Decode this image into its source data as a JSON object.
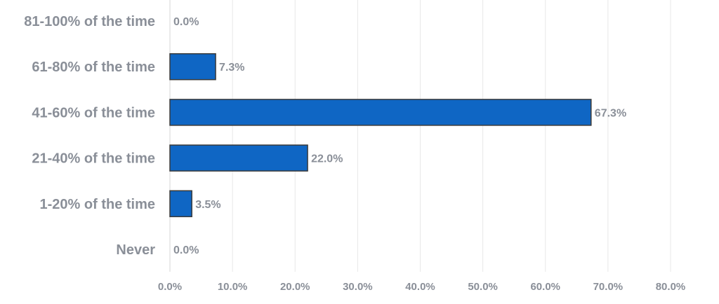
{
  "chart_data": {
    "type": "bar",
    "orientation": "horizontal",
    "categories": [
      "81-100% of the time",
      "61-80% of the time",
      "41-60% of the time",
      "21-40% of the time",
      "1-20% of the time",
      "Never"
    ],
    "values": [
      0.0,
      7.3,
      67.3,
      22.0,
      3.5,
      0.0
    ],
    "value_labels": [
      "0.0%",
      "7.3%",
      "67.3%",
      "22.0%",
      "3.5%",
      "0.0%"
    ],
    "xlim": [
      0,
      80
    ],
    "x_ticks": [
      0,
      10,
      20,
      30,
      40,
      50,
      60,
      70,
      80
    ],
    "x_tick_labels": [
      "0.0%",
      "10.0%",
      "20.0%",
      "30.0%",
      "40.0%",
      "50.0%",
      "60.0%",
      "70.0%",
      "80.0%"
    ],
    "title": "",
    "xlabel": "",
    "ylabel": "",
    "grid": "vertical",
    "legend": "none",
    "bar_color": "#0f66c4",
    "bar_outline_color": "#3a3a3a",
    "text_color": "#8a8f98"
  }
}
